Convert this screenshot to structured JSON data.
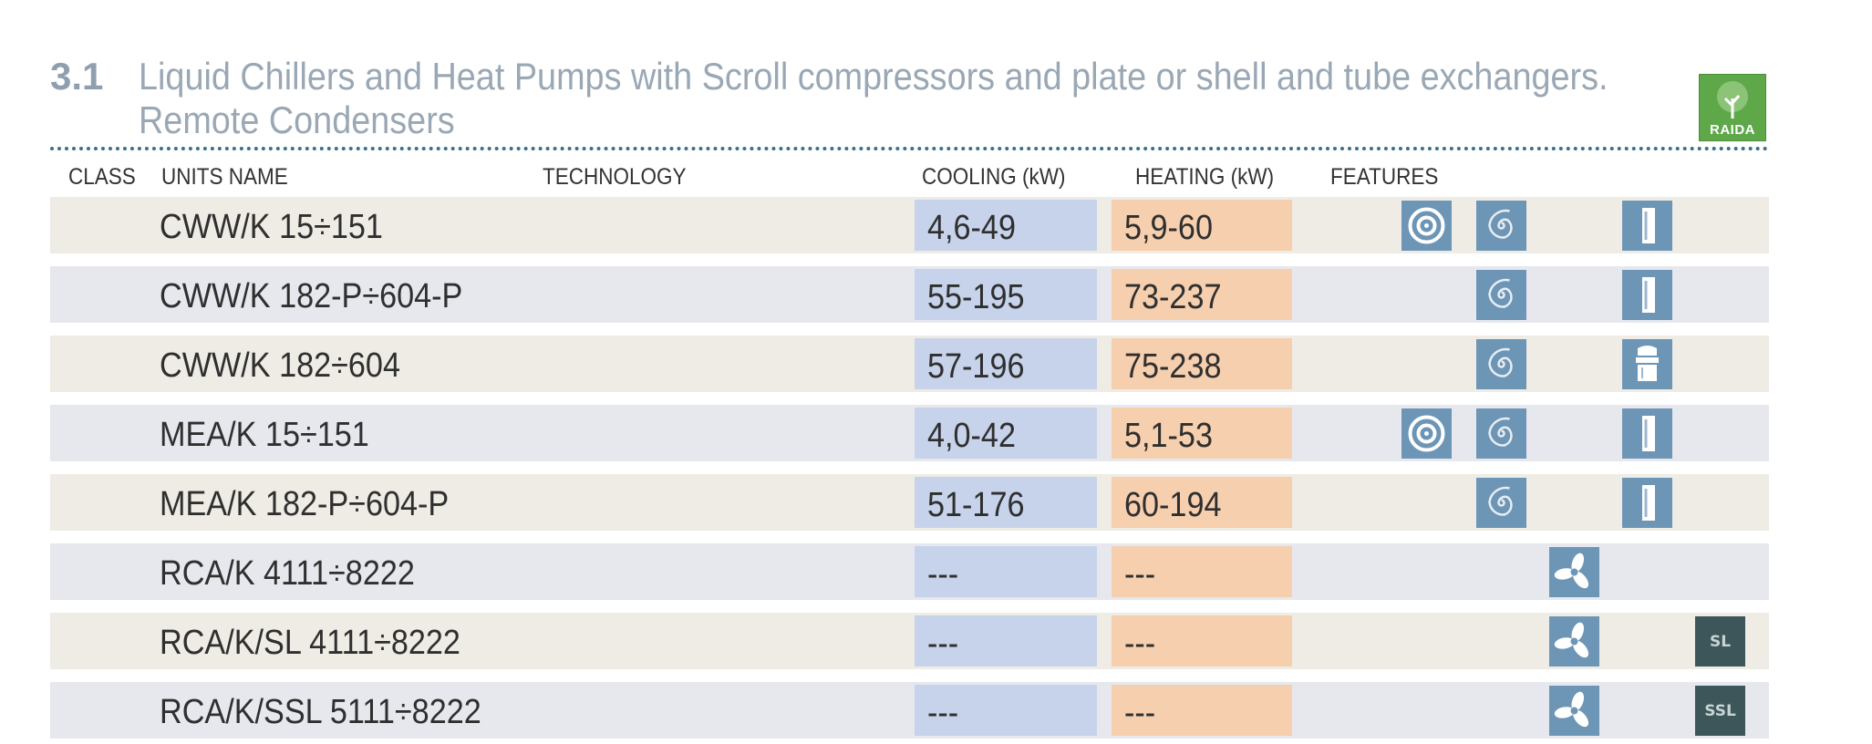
{
  "section": {
    "number": "3.1",
    "title_line1": "Liquid Chillers and Heat Pumps with Scroll compressors and plate or shell and tube exchangers.",
    "title_line2": "Remote Condensers",
    "logo_text": "RAIDA"
  },
  "headers": {
    "class": "CLASS",
    "units_name": "UNITS NAME",
    "technology": "TECHNOLOGY",
    "cooling": "COOLING (kW)",
    "heating": "HEATING (kW)",
    "features": "FEATURES"
  },
  "rows": [
    {
      "name": "CWW/K 15÷151",
      "cooling": "4,6-49",
      "heating": "5,9-60"
    },
    {
      "name": "CWW/K 182-P÷604-P",
      "cooling": "55-195",
      "heating": "73-237"
    },
    {
      "name": "CWW/K 182÷604",
      "cooling": "57-196",
      "heating": "75-238"
    },
    {
      "name": "MEA/K 15÷151",
      "cooling": "4,0-42",
      "heating": "5,1-53"
    },
    {
      "name": "MEA/K 182-P÷604-P",
      "cooling": "51-176",
      "heating": "60-194"
    },
    {
      "name": "RCA/K 4111÷8222",
      "cooling": "---",
      "heating": "---"
    },
    {
      "name": "RCA/K/SL 4111÷8222",
      "cooling": "---",
      "heating": "---"
    },
    {
      "name": "RCA/K/SSL 5111÷8222",
      "cooling": "---",
      "heating": "---"
    }
  ],
  "feature_badges": {
    "sl": "SL",
    "ssl": "SSL"
  },
  "colors": {
    "cooling_cell": "#c7d3ea",
    "heating_cell": "#f6cfae",
    "feature_icon": "#6d95b6",
    "row_odd": "#eeece4",
    "row_even": "#e7e8ee"
  }
}
